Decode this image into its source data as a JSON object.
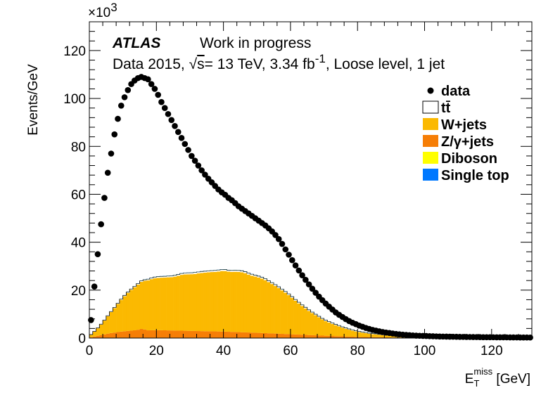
{
  "chart_data": {
    "type": "bar",
    "stacked": true,
    "histogram": true,
    "xlabel_main": "E",
    "xlabel_sub": "T",
    "xlabel_sup": "miss",
    "xlabel_unit": " [GeV]",
    "ylabel": "Events/GeV",
    "y_multiplier": "×10",
    "y_multiplier_exp": "3",
    "xlim": [
      0,
      132
    ],
    "ylim": [
      0,
      132
    ],
    "x_ticks": [
      0,
      20,
      40,
      60,
      80,
      100,
      120
    ],
    "y_ticks": [
      0,
      20,
      40,
      60,
      80,
      100,
      120
    ],
    "grid": false,
    "legend_position": "top-right",
    "annotation": {
      "experiment": "ATLAS",
      "status": "Work in progress",
      "line2_prefix": "Data 2015, ",
      "sqrt": "√",
      "line2_s": "s",
      "line2_energy": "= 13 TeV, 3.34 fb",
      "line2_exp": "-1",
      "line2_suffix": ", Loose level, 1 jet"
    },
    "legend": [
      {
        "name": "data",
        "style": "marker",
        "color": "#000000"
      },
      {
        "name": "tt̄",
        "style": "box",
        "color": "#ffffff"
      },
      {
        "name": "W+jets",
        "style": "box",
        "color": "#fbb901"
      },
      {
        "name": "Z/γ+jets",
        "style": "box",
        "color": "#f67e06"
      },
      {
        "name": "Diboson",
        "style": "box",
        "color": "#ffff00"
      },
      {
        "name": "Single top",
        "style": "box",
        "color": "#0078ff"
      }
    ],
    "bin_edges": [
      0,
      132
    ],
    "bin_width": 1,
    "series": [
      {
        "name": "Z/γ+jets",
        "color": "#f67e06",
        "points": [
          [
            0,
            0.2
          ],
          [
            2,
            0.8
          ],
          [
            6,
            2.0
          ],
          [
            10,
            2.8
          ],
          [
            14,
            3.3
          ],
          [
            16,
            4.0
          ],
          [
            17,
            3.2
          ],
          [
            20,
            3.3
          ],
          [
            30,
            3.0
          ],
          [
            40,
            2.7
          ],
          [
            50,
            2.2
          ],
          [
            60,
            1.6
          ],
          [
            70,
            1.0
          ],
          [
            80,
            0.5
          ],
          [
            90,
            0.25
          ],
          [
            100,
            0.1
          ],
          [
            110,
            0.04
          ],
          [
            132,
            0
          ]
        ]
      },
      {
        "name": "W+jets",
        "color": "#fbb901",
        "points": [
          [
            0,
            0.5
          ],
          [
            2,
            2.5
          ],
          [
            4,
            5.0
          ],
          [
            6,
            8.0
          ],
          [
            8,
            11
          ],
          [
            10,
            14
          ],
          [
            12,
            16.5
          ],
          [
            14,
            18.5
          ],
          [
            16,
            20
          ],
          [
            18,
            21.2
          ],
          [
            20,
            21.8
          ],
          [
            22,
            22.0
          ],
          [
            25,
            22.3
          ],
          [
            28,
            23.5
          ],
          [
            31,
            23.7
          ],
          [
            33,
            24.2
          ],
          [
            36,
            24.7
          ],
          [
            38,
            24.9
          ],
          [
            40,
            25.4
          ],
          [
            42,
            25.0
          ],
          [
            44,
            25.2
          ],
          [
            46,
            25.0
          ],
          [
            48,
            23.9
          ],
          [
            50,
            23.3
          ],
          [
            52,
            22.5
          ],
          [
            54,
            21.0
          ],
          [
            56,
            19.5
          ],
          [
            58,
            17.7
          ],
          [
            60,
            15.8
          ],
          [
            62,
            13.5
          ],
          [
            64,
            11.5
          ],
          [
            66,
            9.6
          ],
          [
            68,
            8.0
          ],
          [
            70,
            6.4
          ],
          [
            72,
            5.3
          ],
          [
            74,
            4.3
          ],
          [
            76,
            3.4
          ],
          [
            78,
            2.7
          ],
          [
            80,
            2.1
          ],
          [
            84,
            1.3
          ],
          [
            88,
            0.8
          ],
          [
            92,
            0.45
          ],
          [
            96,
            0.25
          ],
          [
            100,
            0.15
          ],
          [
            105,
            0.08
          ],
          [
            110,
            0.04
          ],
          [
            120,
            0.01
          ],
          [
            132,
            0
          ]
        ]
      },
      {
        "name": "tt̄",
        "color": "#ffffff",
        "points": [
          [
            0,
            0.1
          ],
          [
            10,
            0.3
          ],
          [
            20,
            0.5
          ],
          [
            30,
            0.6
          ],
          [
            40,
            0.6
          ],
          [
            50,
            0.6
          ],
          [
            60,
            0.5
          ],
          [
            70,
            0.4
          ],
          [
            80,
            0.3
          ],
          [
            90,
            0.2
          ],
          [
            100,
            0.12
          ],
          [
            110,
            0.07
          ],
          [
            120,
            0.04
          ],
          [
            132,
            0.02
          ]
        ]
      },
      {
        "name": "Diboson",
        "color": "#ffff00",
        "points": [
          [
            0,
            0
          ],
          [
            20,
            0.05
          ],
          [
            60,
            0.05
          ],
          [
            132,
            0
          ]
        ]
      },
      {
        "name": "Single top",
        "color": "#0078ff",
        "points": [
          [
            0,
            0
          ],
          [
            20,
            0.08
          ],
          [
            60,
            0.08
          ],
          [
            132,
            0
          ]
        ]
      }
    ],
    "data_points": {
      "name": "data",
      "x": [
        0.5,
        1.5,
        2.5,
        3.5,
        4.5,
        5.5,
        6.5,
        7.5,
        8.5,
        9.5,
        10.5,
        11.5,
        12.5,
        13.5,
        14.5,
        15.5,
        16.5,
        17.5,
        18.5,
        19.5,
        20.5,
        21.5,
        22.5,
        23.5,
        24.5,
        25.5,
        26.5,
        27.5,
        28.5,
        29.5,
        30.5,
        31.5,
        32.5,
        33.5,
        34.5,
        35.5,
        36.5,
        37.5,
        38.5,
        39.5,
        40.5,
        41.5,
        42.5,
        43.5,
        44.5,
        45.5,
        46.5,
        47.5,
        48.5,
        49.5,
        50.5,
        51.5,
        52.5,
        53.5,
        54.5,
        55.5,
        56.5,
        57.5,
        58.5,
        59.5,
        60.5,
        61.5,
        62.5,
        63.5,
        64.5,
        65.5,
        66.5,
        67.5,
        68.5,
        69.5,
        70.5,
        71.5,
        72.5,
        73.5,
        74.5,
        75.5,
        76.5,
        77.5,
        78.5,
        79.5,
        80.5,
        81.5,
        82.5,
        83.5,
        84.5,
        85.5,
        86.5,
        87.5,
        88.5,
        89.5,
        90.5,
        91.5,
        92.5,
        93.5,
        94.5,
        95.5,
        96.5,
        97.5,
        98.5,
        99.5,
        100.5,
        101.5,
        102.5,
        103.5,
        104.5,
        105.5,
        106.5,
        107.5,
        108.5,
        109.5,
        110.5,
        111.5,
        112.5,
        113.5,
        114.5,
        115.5,
        116.5,
        117.5,
        118.5,
        119.5,
        120.5,
        121.5,
        122.5,
        123.5,
        124.5,
        125.5,
        126.5,
        127.5,
        128.5,
        129.5,
        130.5,
        131.5
      ],
      "y": [
        7.5,
        21.5,
        35,
        47.5,
        58.5,
        69,
        77,
        85,
        91.5,
        97,
        100.5,
        103.5,
        106,
        107.5,
        108.5,
        109,
        108.5,
        108,
        106,
        104,
        101.5,
        98.5,
        96,
        93.5,
        91,
        88.5,
        86,
        83.5,
        81,
        78.5,
        76,
        74,
        72,
        70,
        68.2,
        66.5,
        65,
        63.5,
        62,
        60.8,
        59.8,
        58.5,
        57.5,
        56.3,
        55,
        54,
        53,
        52,
        51,
        50,
        49,
        48,
        47,
        45.8,
        44.5,
        43,
        41.3,
        39.3,
        37,
        34.8,
        32.5,
        30.3,
        28.2,
        26.2,
        24.3,
        22.4,
        20.6,
        18.9,
        17.3,
        15.8,
        14.4,
        13.1,
        11.9,
        10.7,
        9.7,
        8.8,
        7.9,
        7.1,
        6.4,
        5.8,
        5.2,
        4.7,
        4.2,
        3.8,
        3.4,
        3.1,
        2.8,
        2.5,
        2.3,
        2.1,
        1.9,
        1.7,
        1.55,
        1.4,
        1.3,
        1.2,
        1.1,
        1.0,
        0.95,
        0.9,
        0.85,
        0.8,
        0.75,
        0.7,
        0.65,
        0.62,
        0.6,
        0.57,
        0.55,
        0.53,
        0.5,
        0.48,
        0.46,
        0.44,
        0.42,
        0.4,
        0.38,
        0.36,
        0.35,
        0.34,
        0.33,
        0.32,
        0.31,
        0.3,
        0.29,
        0.28,
        0.27,
        0.26,
        0.25,
        0.24,
        0.23,
        0.22
      ]
    }
  }
}
